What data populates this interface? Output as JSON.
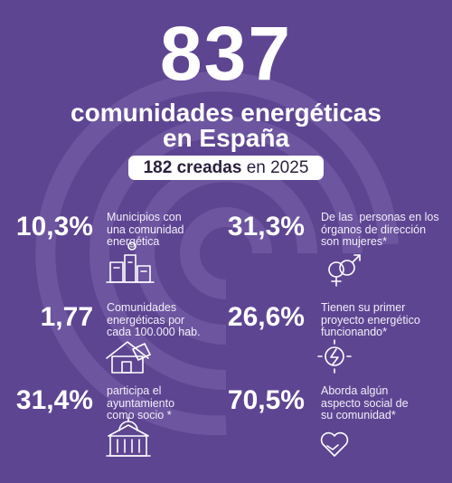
{
  "header": {
    "number": "837",
    "title_lines": [
      "comunidades energéticas",
      "en España"
    ],
    "pill": {
      "bold": "182 creadas",
      "rest": "en 2025"
    }
  },
  "stats": [
    {
      "value": "10,3%",
      "lines": [
        "Municipios con",
        "una comunidad",
        "energética"
      ]
    },
    {
      "value": "31,3%",
      "lines": [
        "De las  personas en los",
        "órganos de dirección",
        "son mujeres*"
      ]
    },
    {
      "value": "1,77",
      "lines": [
        "Comunidades",
        "energéticas por",
        "cada 100.000 hab."
      ]
    },
    {
      "value": "26,6%",
      "lines": [
        "Tienen su primer",
        "proyecto energético",
        "funcionando*"
      ]
    },
    {
      "value": "31,4%",
      "lines": [
        "participa el",
        "ayuntamiento",
        "como socio *"
      ]
    },
    {
      "value": "70,5%",
      "lines": [
        "Aborda algún",
        "aspecto social de",
        "su comunidad*"
      ]
    }
  ]
}
